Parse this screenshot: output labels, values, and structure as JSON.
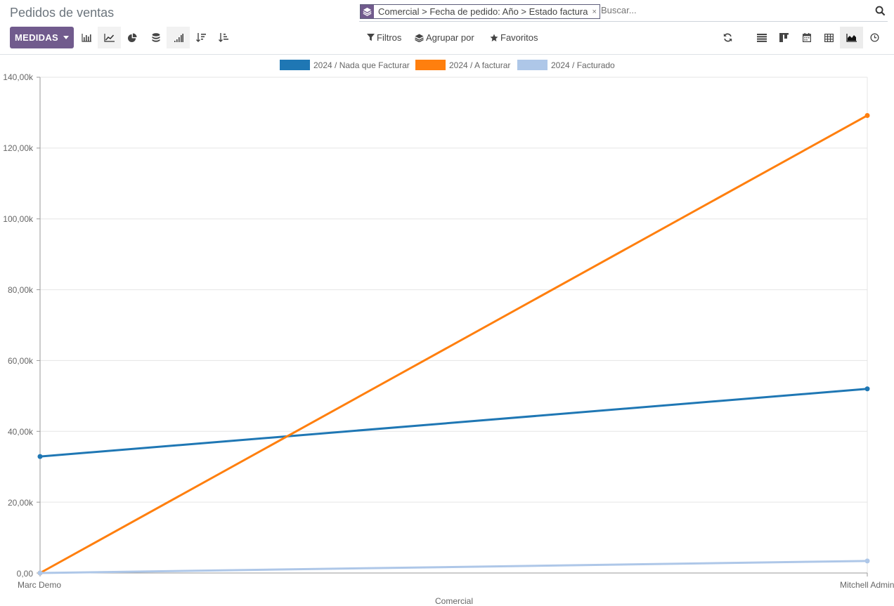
{
  "page": {
    "title": "Pedidos de ventas"
  },
  "search": {
    "facet_text": "Comercial > Fecha de pedido: Año > Estado factura",
    "facet_close": "×",
    "placeholder": "Buscar..."
  },
  "toolbar": {
    "measures_label": "MEDIDAS",
    "filters_label": "Filtros",
    "groupby_label": "Agrupar por",
    "favorites_label": "Favoritos"
  },
  "colors": {
    "accent": "#715b8d",
    "series1": "#1f77b4",
    "series2": "#ff7f0e",
    "series3": "#aec7e8"
  },
  "chart_data": {
    "type": "line",
    "categories": [
      "Marc Demo",
      "Mitchell Admin"
    ],
    "series": [
      {
        "name": "2024 / Nada que Facturar",
        "color": "#1f77b4",
        "values": [
          32900,
          52000
        ]
      },
      {
        "name": "2024 / A facturar",
        "color": "#ff7f0e",
        "values": [
          0,
          129200
        ]
      },
      {
        "name": "2024 / Facturado",
        "color": "#aec7e8",
        "values": [
          0,
          3400
        ]
      }
    ],
    "xlabel": "Comercial",
    "ylim": [
      0,
      140000
    ],
    "yticks": [
      "0,00",
      "20,00k",
      "40,00k",
      "60,00k",
      "80,00k",
      "100,00k",
      "120,00k",
      "140,00k"
    ],
    "grid": true,
    "legend": "top-center"
  }
}
